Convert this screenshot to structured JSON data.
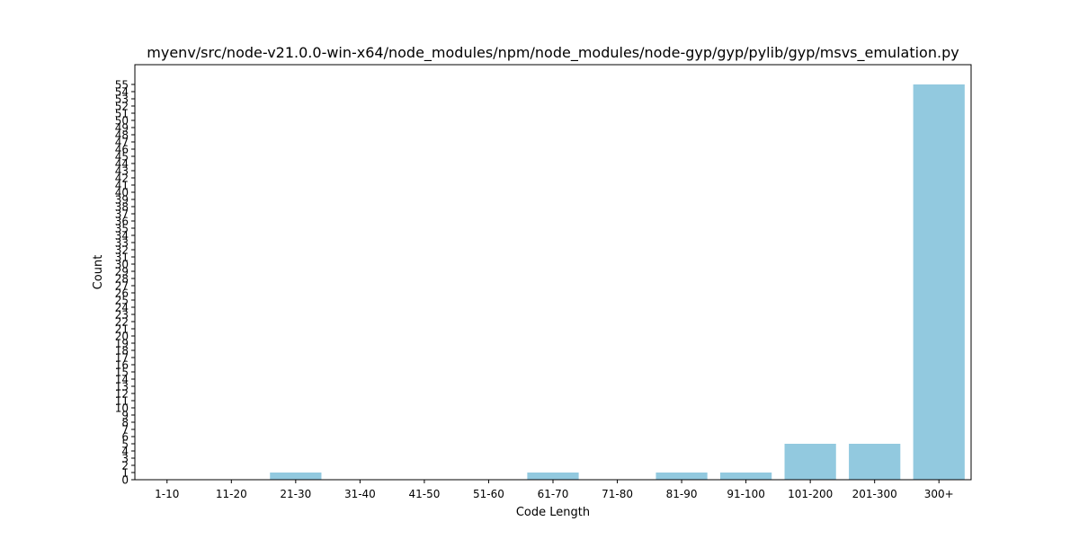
{
  "chart_data": {
    "type": "bar",
    "title": "myenv/src/node-v21.0.0-win-x64/node_modules/npm/node_modules/node-gyp/gyp/pylib/gyp/msvs_emulation.py",
    "xlabel": "Code Length",
    "ylabel": "Count",
    "categories": [
      "1-10",
      "11-20",
      "21-30",
      "31-40",
      "41-50",
      "51-60",
      "61-70",
      "71-80",
      "81-90",
      "91-100",
      "101-200",
      "201-300",
      "300+"
    ],
    "values": [
      0,
      0,
      1,
      0,
      0,
      0,
      1,
      0,
      1,
      1,
      5,
      5,
      55
    ],
    "ylim": [
      0,
      57.75
    ],
    "yticks": [
      0,
      1,
      2,
      3,
      4,
      5,
      6,
      7,
      8,
      9,
      10,
      11,
      12,
      13,
      14,
      15,
      16,
      17,
      18,
      19,
      20,
      21,
      22,
      23,
      24,
      25,
      26,
      27,
      28,
      29,
      30,
      31,
      32,
      33,
      34,
      35,
      36,
      37,
      38,
      39,
      40,
      41,
      42,
      43,
      44,
      45,
      46,
      47,
      48,
      49,
      50,
      51,
      52,
      53,
      54,
      55
    ],
    "bar_color": "#92c9df",
    "grid": false,
    "legend": "none"
  }
}
